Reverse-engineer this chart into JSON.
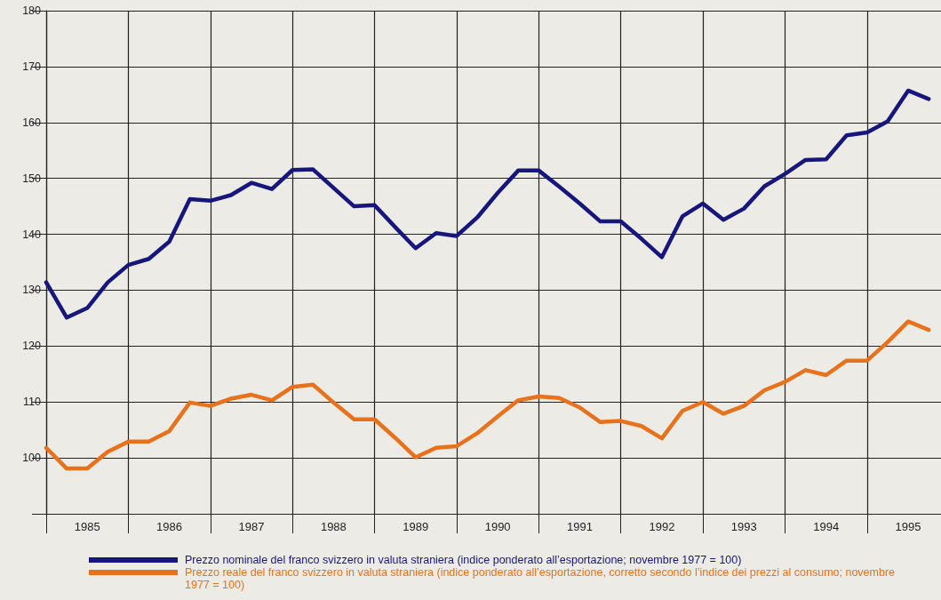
{
  "chart_data": {
    "type": "line",
    "x": [
      1985,
      1985.25,
      1985.5,
      1985.75,
      1986,
      1986.25,
      1986.5,
      1986.75,
      1987,
      1987.25,
      1987.5,
      1987.75,
      1988,
      1988.25,
      1988.5,
      1988.75,
      1989,
      1989.25,
      1989.5,
      1989.75,
      1990,
      1990.25,
      1990.5,
      1990.75,
      1991,
      1991.25,
      1991.5,
      1991.75,
      1992,
      1992.25,
      1992.5,
      1992.75,
      1993,
      1993.25,
      1993.5,
      1993.75,
      1994,
      1994.25,
      1994.5,
      1994.75,
      1995,
      1995.25,
      1995.5,
      1995.75
    ],
    "series": [
      {
        "name": "Prezzo nominale del franco svizzero in valuta straniera (indice ponderato all’esportazione; novembre 1977 = 100)",
        "color": "#16167c",
        "values": [
          131.4,
          125.1,
          126.8,
          131.4,
          134.5,
          135.6,
          138.7,
          146.3,
          146,
          147,
          149.2,
          148.1,
          151.5,
          151.6,
          148.3,
          145,
          145.2,
          141.3,
          137.5,
          140.2,
          139.7,
          143,
          147.4,
          151.4,
          151.4,
          148.5,
          145.5,
          142.3,
          142.3,
          139.2,
          135.9,
          143.2,
          145.5,
          142.6,
          144.6,
          148.6,
          150.8,
          153.3,
          153.4,
          157.7,
          158.2,
          160.2,
          165.7,
          164.2
        ]
      },
      {
        "name": "Prezzo reale del franco svizzero in valuta straniera (indice ponderato all’esportazione, corretto secondo l’indice dei prezzi al consumo; novembre 1977 = 100)",
        "color": "#e8721c",
        "values": [
          101.8,
          98.1,
          98.1,
          101.1,
          102.9,
          102.9,
          104.8,
          109.9,
          109.3,
          110.6,
          111.3,
          110.3,
          112.7,
          113.1,
          109.9,
          106.9,
          106.9,
          103.6,
          100.1,
          101.8,
          102.1,
          104.4,
          107.4,
          110.3,
          111,
          110.7,
          109,
          106.4,
          106.6,
          105.7,
          103.5,
          108.4,
          110,
          107.9,
          109.3,
          112.1,
          113.6,
          115.7,
          114.8,
          117.4,
          117.4,
          120.7,
          124.4,
          122.9
        ]
      }
    ],
    "xlim": [
      1985,
      1995.9
    ],
    "xticks": [
      {
        "value": 1985,
        "label": null
      },
      {
        "value": 1985.5,
        "label": "1985"
      },
      {
        "value": 1986,
        "label": null
      },
      {
        "value": 1986.5,
        "label": "1986"
      },
      {
        "value": 1987,
        "label": null
      },
      {
        "value": 1987.5,
        "label": "1987"
      },
      {
        "value": 1988,
        "label": null
      },
      {
        "value": 1988.5,
        "label": "1988"
      },
      {
        "value": 1989,
        "label": null
      },
      {
        "value": 1989.5,
        "label": "1989"
      },
      {
        "value": 1990,
        "label": null
      },
      {
        "value": 1990.5,
        "label": "1990"
      },
      {
        "value": 1991,
        "label": null
      },
      {
        "value": 1991.5,
        "label": "1991"
      },
      {
        "value": 1992,
        "label": null
      },
      {
        "value": 1992.5,
        "label": "1992"
      },
      {
        "value": 1993,
        "label": null
      },
      {
        "value": 1993.5,
        "label": "1993"
      },
      {
        "value": 1994,
        "label": null
      },
      {
        "value": 1994.5,
        "label": "1994"
      },
      {
        "value": 1995,
        "label": null
      },
      {
        "value": 1995.5,
        "label": "1995"
      }
    ],
    "ylim": [
      90,
      180
    ],
    "yticks": [
      {
        "value": 90,
        "label": null
      },
      100,
      110,
      120,
      130,
      140,
      150,
      160,
      170,
      180
    ],
    "grid": true,
    "legend": "bottom",
    "marker": "none",
    "line_style": "solid"
  }
}
